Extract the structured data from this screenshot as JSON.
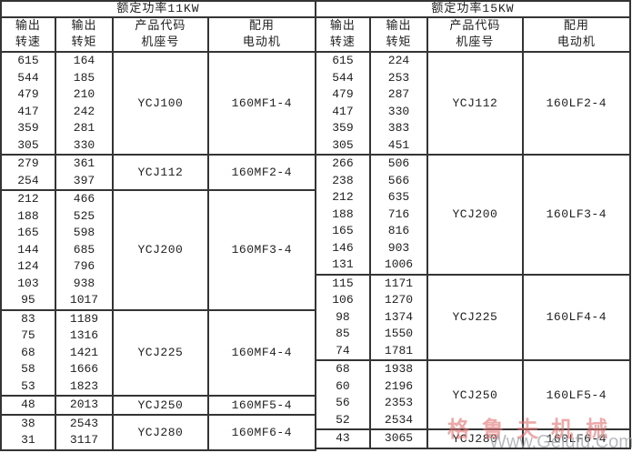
{
  "watermark": {
    "brand": "格鲁夫机械",
    "url": "Www.Gelufu.Com",
    "brand_color": "#e16e6e",
    "url_color": "#a0a5aa"
  },
  "border_color": "#343434",
  "tables": [
    {
      "title": "额定功率11KW",
      "headers": [
        [
          "输出",
          "转速"
        ],
        [
          "输出",
          "转矩"
        ],
        [
          "产品代码",
          "机座号"
        ],
        [
          "配用",
          "电动机"
        ]
      ],
      "groups": [
        {
          "speeds": [
            "615",
            "544",
            "479",
            "417",
            "359",
            "305"
          ],
          "torques": [
            "164",
            "185",
            "210",
            "242",
            "281",
            "330"
          ],
          "code": "YCJ100",
          "motor": "160MF1-4"
        },
        {
          "speeds": [
            "279",
            "254"
          ],
          "torques": [
            "361",
            "397"
          ],
          "code": "YCJ112",
          "motor": "160MF2-4"
        },
        {
          "speeds": [
            "212",
            "188",
            "165",
            "144",
            "124",
            "103",
            "95"
          ],
          "torques": [
            "466",
            "525",
            "598",
            "685",
            "796",
            "938",
            "1017"
          ],
          "code": "YCJ200",
          "motor": "160MF3-4"
        },
        {
          "speeds": [
            "83",
            "75",
            "68",
            "58",
            "53"
          ],
          "torques": [
            "1189",
            "1316",
            "1421",
            "1666",
            "1823"
          ],
          "code": "YCJ225",
          "motor": "160MF4-4"
        },
        {
          "speeds": [
            "48"
          ],
          "torques": [
            "2013"
          ],
          "code": "YCJ250",
          "motor": "160MF5-4"
        },
        {
          "speeds": [
            "38",
            "31"
          ],
          "torques": [
            "2543",
            "3117"
          ],
          "code": "YCJ280",
          "motor": "160MF6-4"
        }
      ]
    },
    {
      "title": "额定功率15KW",
      "headers": [
        [
          "输出",
          "转速"
        ],
        [
          "输出",
          "转矩"
        ],
        [
          "产品代码",
          "机座号"
        ],
        [
          "配用",
          "电动机"
        ]
      ],
      "groups": [
        {
          "speeds": [
            "615",
            "544",
            "479",
            "417",
            "359",
            "305"
          ],
          "torques": [
            "224",
            "253",
            "287",
            "330",
            "383",
            "451"
          ],
          "code": "YCJ112",
          "motor": "160LF2-4"
        },
        {
          "speeds": [
            "266",
            "238",
            "212",
            "188",
            "165",
            "146",
            "131"
          ],
          "torques": [
            "506",
            "566",
            "635",
            "716",
            "816",
            "903",
            "1006"
          ],
          "code": "YCJ200",
          "motor": "160LF3-4"
        },
        {
          "speeds": [
            "115",
            "106",
            "98",
            "85",
            "74"
          ],
          "torques": [
            "1171",
            "1270",
            "1374",
            "1550",
            "1781"
          ],
          "code": "YCJ225",
          "motor": "160LF4-4"
        },
        {
          "speeds": [
            "68",
            "60",
            "56",
            "52"
          ],
          "torques": [
            "1938",
            "2196",
            "2353",
            "2534"
          ],
          "code": "YCJ250",
          "motor": "160LF5-4"
        },
        {
          "speeds": [
            "43"
          ],
          "torques": [
            "3065"
          ],
          "code": "YCJ280",
          "motor": "160LF6-4"
        }
      ]
    }
  ]
}
